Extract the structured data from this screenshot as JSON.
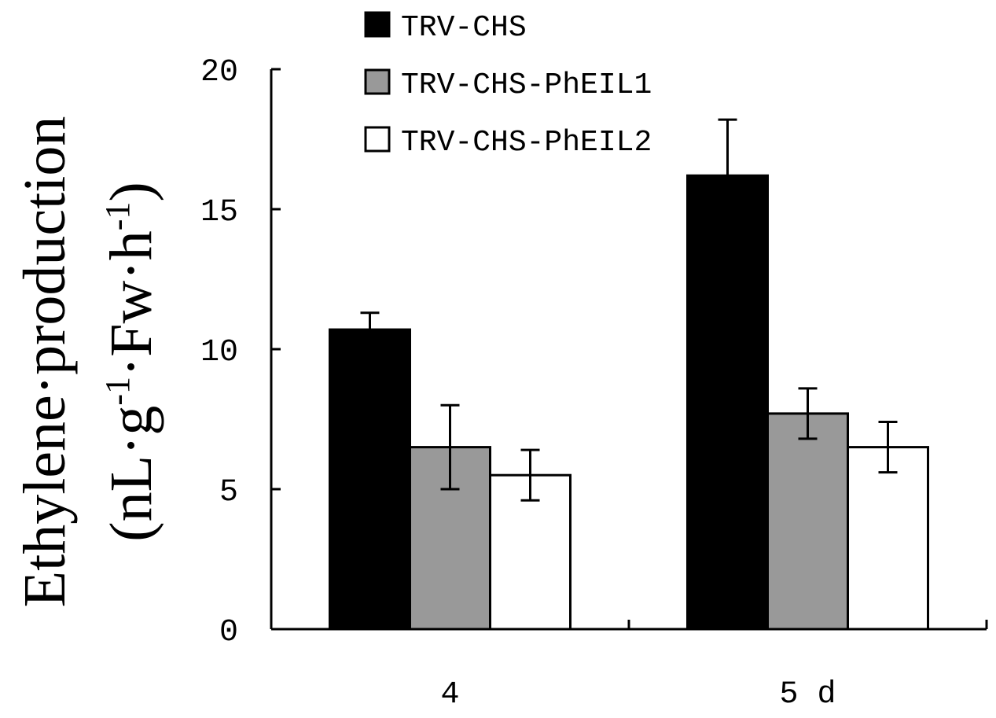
{
  "chart_data": {
    "type": "bar",
    "categories": [
      "4",
      "5 d"
    ],
    "series": [
      {
        "name": "TRV-CHS",
        "values": [
          10.7,
          16.2
        ],
        "errors": [
          0.6,
          2.0
        ],
        "color": "#000000"
      },
      {
        "name": "TRV-CHS-PhEIL1",
        "values": [
          6.5,
          7.7
        ],
        "errors": [
          1.5,
          0.9
        ],
        "color": "#999999"
      },
      {
        "name": "TRV-CHS-PhEIL2",
        "values": [
          5.5,
          6.5
        ],
        "errors": [
          0.9,
          0.9
        ],
        "color": "#ffffff"
      }
    ],
    "yticks": [
      "0",
      "5",
      "10",
      "15",
      "20"
    ],
    "ylim": [
      0,
      20
    ],
    "ylabel_line1": "Ethylene·production",
    "ylabel_line2_prefix": "(nL·g",
    "ylabel_sup1": "-1",
    "ylabel_line2_mid": "·Fw·h",
    "ylabel_sup2": "-1",
    "ylabel_line2_suffix": ")",
    "grid": false,
    "legend_position": "top-left"
  }
}
